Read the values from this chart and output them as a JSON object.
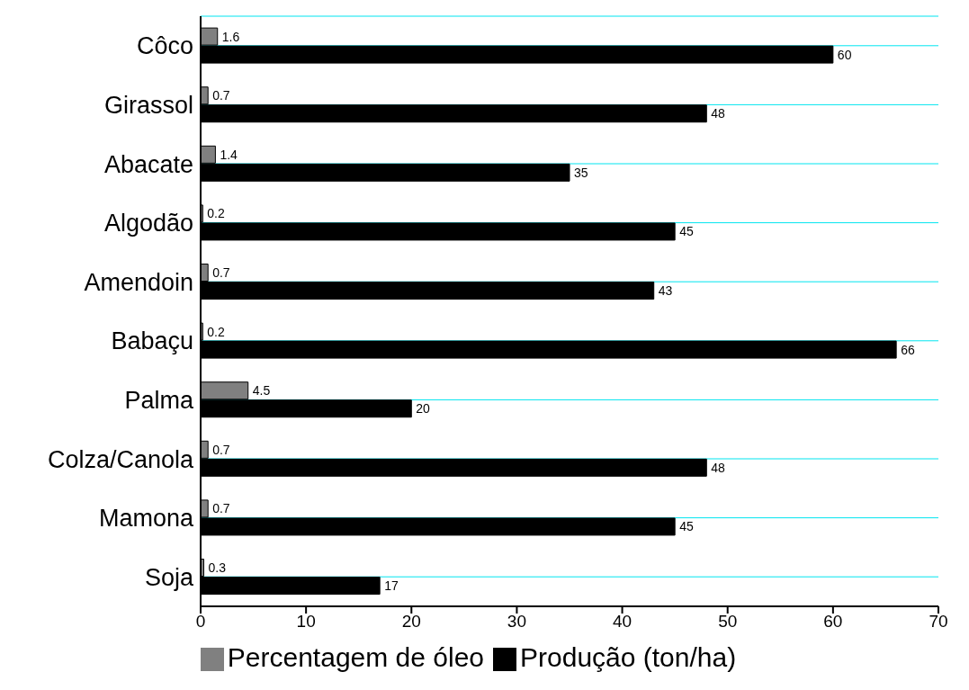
{
  "chart_data": {
    "type": "bar",
    "orientation": "horizontal",
    "categories": [
      "Côco",
      "Girassol",
      "Abacate",
      "Algodão",
      "Amendoin",
      "Babaçu",
      "Palma",
      "Colza/Canola",
      "Mamona",
      "Soja"
    ],
    "series": [
      {
        "name": "Percentagem de óleo",
        "color": "#808080",
        "values": [
          1.6,
          0.7,
          1.4,
          0.2,
          0.7,
          0.2,
          4.5,
          0.7,
          0.7,
          0.3
        ]
      },
      {
        "name": "Produção (ton/ha)",
        "color": "#000000",
        "values": [
          60,
          48,
          35,
          45,
          43,
          66,
          20,
          48,
          45,
          17
        ]
      }
    ],
    "xlim": [
      0,
      70
    ],
    "xticks": [
      0,
      10,
      20,
      30,
      40,
      50,
      60,
      70
    ],
    "data_labels": true,
    "grid": "y",
    "legend": "bottom"
  }
}
